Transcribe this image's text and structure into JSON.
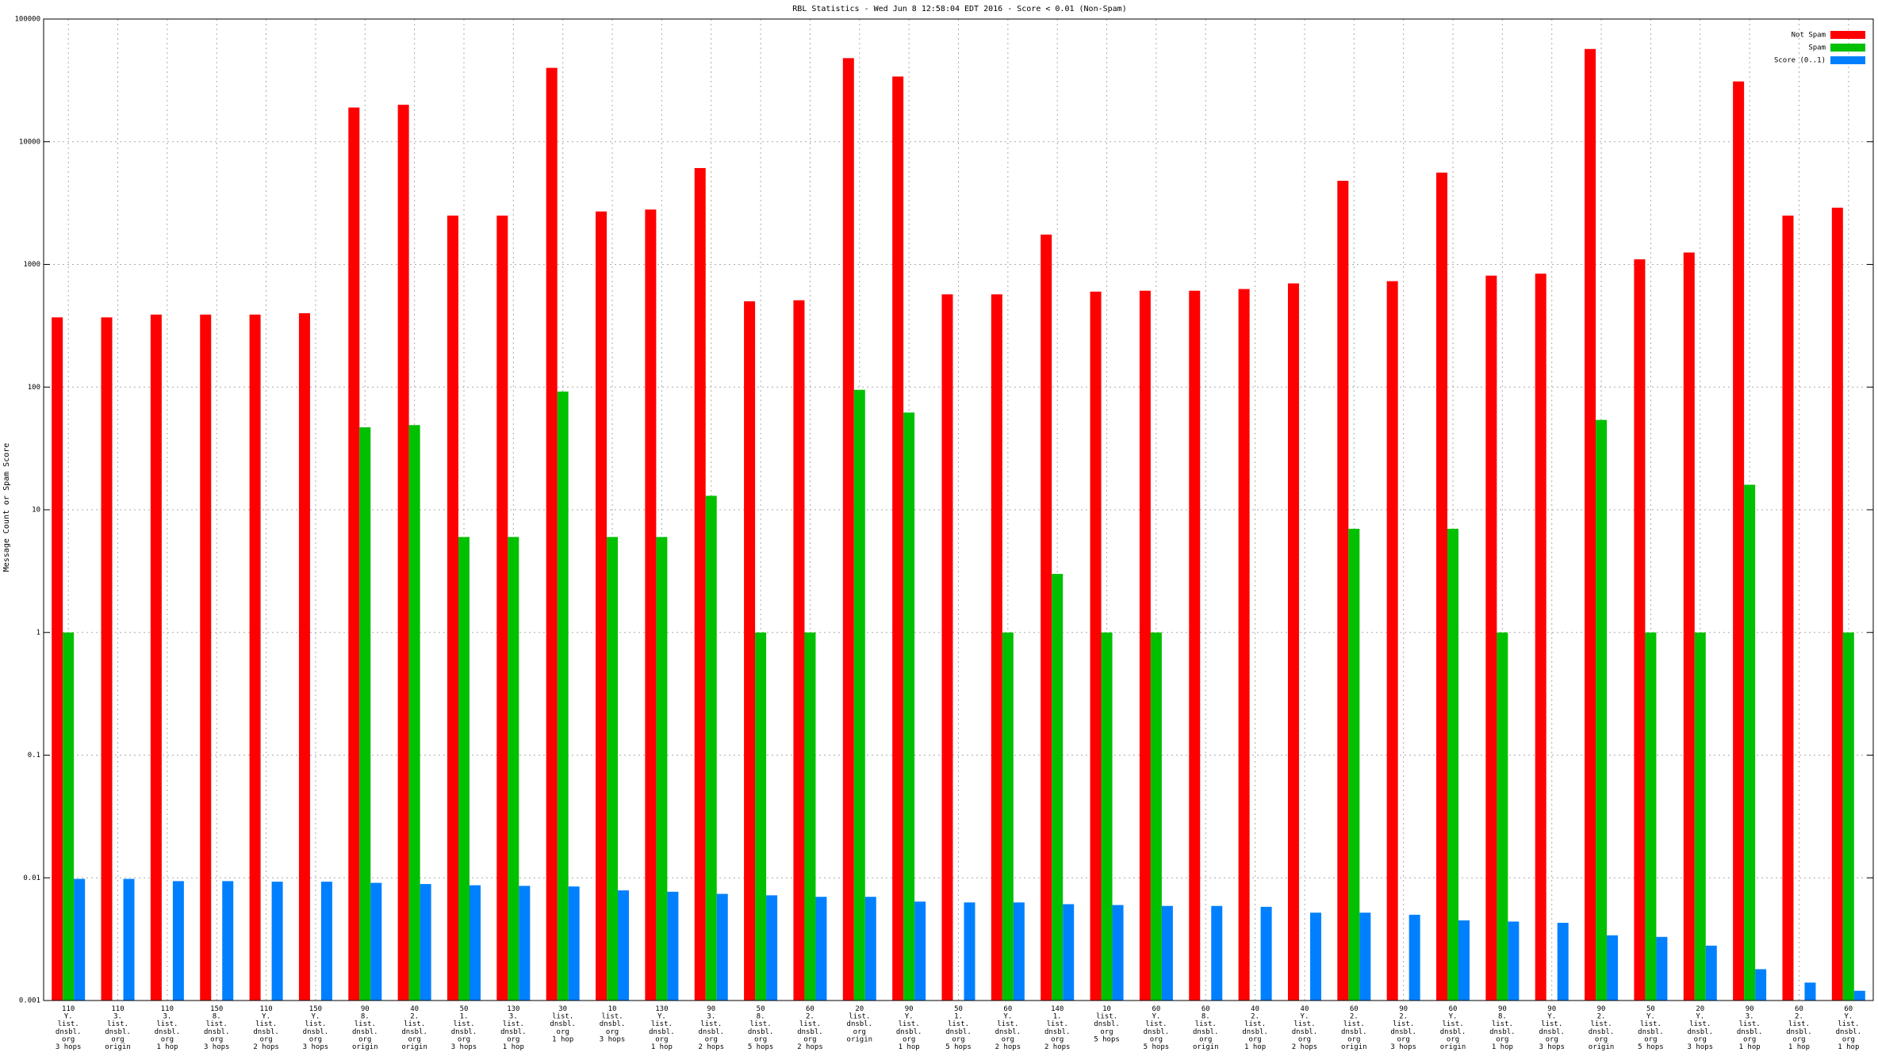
{
  "chart_data": {
    "type": "bar",
    "title": "RBL Statistics - Wed Jun  8 12:58:04 EDT 2016 - Score < 0.01 (Non-Spam)",
    "y_label": "Message Count or Spam Score",
    "log_scale": true,
    "grid": true,
    "legend_position": "top-right",
    "ylim": [
      0.001,
      100000
    ],
    "yticks": [
      0.001,
      0.01,
      0.1,
      1,
      10,
      100,
      1000,
      10000,
      100000
    ],
    "categories": [
      [
        "110",
        "Y.",
        "list.",
        "dnsbl.",
        "org",
        "3 hops"
      ],
      [
        "110",
        "3.",
        "list.",
        "dnsbl.",
        "org",
        "origin"
      ],
      [
        "110",
        "3.",
        "list.",
        "dnsbl.",
        "org",
        "1 hop"
      ],
      [
        "150",
        "8.",
        "list.",
        "dnsbl.",
        "org",
        "3 hops"
      ],
      [
        "110",
        "Y.",
        "list.",
        "dnsbl.",
        "org",
        "2 hops"
      ],
      [
        "150",
        "Y.",
        "list.",
        "dnsbl.",
        "org",
        "3 hops"
      ],
      [
        "90",
        "8.",
        "list.",
        "dnsbl.",
        "org",
        "origin"
      ],
      [
        "40",
        "2.",
        "list.",
        "dnsbl.",
        "org",
        "origin"
      ],
      [
        "50",
        "1.",
        "list.",
        "dnsbl.",
        "org",
        "3 hops"
      ],
      [
        "130",
        "3.",
        "list.",
        "dnsbl.",
        "org",
        "1 hop"
      ],
      [
        "30",
        "list.",
        "dnsbl.",
        "org",
        "1 hop"
      ],
      [
        "10",
        "list.",
        "dnsbl.",
        "org",
        "3 hops"
      ],
      [
        "130",
        "Y.",
        "list.",
        "dnsbl.",
        "org",
        "1 hop"
      ],
      [
        "90",
        "3.",
        "list.",
        "dnsbl.",
        "org",
        "2 hops"
      ],
      [
        "50",
        "8.",
        "list.",
        "dnsbl.",
        "org",
        "5 hops"
      ],
      [
        "60",
        "2.",
        "list.",
        "dnsbl.",
        "org",
        "2 hops"
      ],
      [
        "20",
        "list.",
        "dnsbl.",
        "org",
        "origin"
      ],
      [
        "90",
        "Y.",
        "list.",
        "dnsbl.",
        "org",
        "1 hop"
      ],
      [
        "50",
        "1.",
        "list.",
        "dnsbl.",
        "org",
        "5 hops"
      ],
      [
        "60",
        "Y.",
        "list.",
        "dnsbl.",
        "org",
        "2 hops"
      ],
      [
        "140",
        "1.",
        "list.",
        "dnsbl.",
        "org",
        "2 hops"
      ],
      [
        "10",
        "list.",
        "dnsbl.",
        "org",
        "5 hops"
      ],
      [
        "60",
        "Y.",
        "list.",
        "dnsbl.",
        "org",
        "5 hops"
      ],
      [
        "60",
        "8.",
        "list.",
        "dnsbl.",
        "org",
        "origin"
      ],
      [
        "40",
        "2.",
        "list.",
        "dnsbl.",
        "org",
        "1 hop"
      ],
      [
        "40",
        "Y.",
        "list.",
        "dnsbl.",
        "org",
        "2 hops"
      ],
      [
        "60",
        "2.",
        "list.",
        "dnsbl.",
        "org",
        "origin"
      ],
      [
        "90",
        "2.",
        "list.",
        "dnsbl.",
        "org",
        "3 hops"
      ],
      [
        "60",
        "Y.",
        "list.",
        "dnsbl.",
        "org",
        "origin"
      ],
      [
        "90",
        "8.",
        "list.",
        "dnsbl.",
        "org",
        "1 hop"
      ],
      [
        "90",
        "Y.",
        "list.",
        "dnsbl.",
        "org",
        "3 hops"
      ],
      [
        "90",
        "2.",
        "list.",
        "dnsbl.",
        "org",
        "origin"
      ],
      [
        "50",
        "Y.",
        "list.",
        "dnsbl.",
        "org",
        "5 hops"
      ],
      [
        "20",
        "Y.",
        "list.",
        "dnsbl.",
        "org",
        "3 hops"
      ],
      [
        "90",
        "3.",
        "list.",
        "dnsbl.",
        "org",
        "1 hop"
      ],
      [
        "60",
        "2.",
        "list.",
        "dnsbl.",
        "org",
        "1 hop"
      ],
      [
        "60",
        "Y.",
        "list.",
        "dnsbl.",
        "org",
        "1 hop"
      ]
    ],
    "series": [
      {
        "name": "Not Spam",
        "color": "#ff0000",
        "values": [
          370,
          370,
          390,
          390,
          390,
          400,
          19000,
          20000,
          2500,
          2500,
          40000,
          2700,
          2800,
          6100,
          500,
          510,
          48000,
          34000,
          570,
          570,
          1750,
          600,
          610,
          610,
          630,
          700,
          4800,
          730,
          5600,
          810,
          840,
          57000,
          1100,
          1250,
          31000,
          2500,
          2900
        ]
      },
      {
        "name": "Spam",
        "color": "#00c000",
        "values": [
          1,
          null,
          null,
          null,
          null,
          null,
          47,
          49,
          6,
          6,
          92,
          6,
          6,
          13,
          1,
          1,
          95,
          62,
          null,
          1,
          3,
          1,
          1,
          null,
          null,
          null,
          7,
          null,
          7,
          1,
          null,
          54,
          1,
          1,
          16,
          null,
          1
        ]
      },
      {
        "name": "Score (0..1)",
        "color": "#0080ff",
        "values": [
          0.0098,
          0.0098,
          0.0094,
          0.0094,
          0.0093,
          0.0093,
          0.0091,
          0.0089,
          0.0087,
          0.0086,
          0.0085,
          0.0079,
          0.0077,
          0.0074,
          0.0072,
          0.007,
          0.007,
          0.0064,
          0.0063,
          0.0063,
          0.0061,
          0.006,
          0.0059,
          0.0059,
          0.0058,
          0.0052,
          0.0052,
          0.005,
          0.0045,
          0.0044,
          0.0043,
          0.0034,
          0.0033,
          0.0028,
          0.0018,
          0.0014,
          0.0012
        ]
      }
    ]
  }
}
